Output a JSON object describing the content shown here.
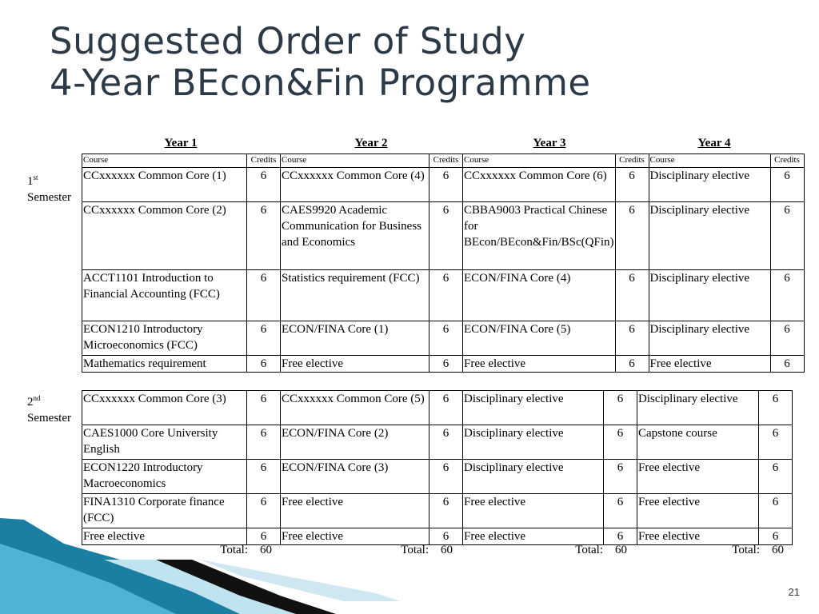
{
  "title": {
    "line1": "Suggested Order of Study",
    "line2": "4-Year BEcon&Fin Programme"
  },
  "years": [
    "Year 1",
    "Year 2",
    "Year 3",
    "Year 4"
  ],
  "header": {
    "course": "Course",
    "credits": "Credits"
  },
  "semesters": [
    {
      "num": "1",
      "sup": "st",
      "label": "Semester",
      "rows": [
        {
          "c1": "CCxxxxxx Common Core (1)",
          "k1": "6",
          "c2": "CCxxxxxx Common Core (4)",
          "k2": "6",
          "c3": "CCxxxxxx Common Core (6)",
          "k3": "6",
          "c4": "Disciplinary elective",
          "k4": "6"
        },
        {
          "c1": "CCxxxxxx Common Core (2)",
          "k1": "6",
          "c2": "CAES9920 Academic Communication for Business and Economics",
          "k2": "6",
          "c3": "CBBA9003 Practical Chinese for BEcon/BEcon&Fin/BSc(QFin)",
          "k3": "6",
          "c4": "Disciplinary elective",
          "k4": "6"
        },
        {
          "c1": "ACCT1101 Introduction to Financial Accounting (FCC)",
          "k1": "6",
          "c2": "Statistics requirement (FCC)",
          "k2": "6",
          "c3": "ECON/FINA Core (4)",
          "k3": "6",
          "c4": "Disciplinary elective",
          "k4": "6"
        },
        {
          "c1": "ECON1210 Introductory Microeconomics (FCC)",
          "k1": "6",
          "c2": "ECON/FINA Core (1)",
          "k2": "6",
          "c3": "ECON/FINA Core (5)",
          "k3": "6",
          "c4": "Disciplinary elective",
          "k4": "6"
        },
        {
          "c1": "Mathematics requirement",
          "k1": "6",
          "c2": "Free elective",
          "k2": "6",
          "c3": "Free elective",
          "k3": "6",
          "c4": "Free elective",
          "k4": "6"
        }
      ]
    },
    {
      "num": "2",
      "sup": "nd",
      "label": "Semester",
      "rows": [
        {
          "c1": "CCxxxxxx Common Core (3)",
          "k1": "6",
          "c2": "CCxxxxxx Common Core (5)",
          "k2": "6",
          "c3": "Disciplinary elective",
          "k3": "6",
          "c4": "Disciplinary elective",
          "k4": "6"
        },
        {
          "c1": "CAES1000 Core University English",
          "k1": "6",
          "c2": "ECON/FINA Core (2)",
          "k2": "6",
          "c3": "Disciplinary elective",
          "k3": "6",
          "c4": "Capstone course",
          "k4": "6"
        },
        {
          "c1": "ECON1220 Introductory Macroeconomics",
          "k1": "6",
          "c2": "ECON/FINA Core (3)",
          "k2": "6",
          "c3": "Disciplinary elective",
          "k3": "6",
          "c4": "Free elective",
          "k4": "6"
        },
        {
          "c1": "FINA1310 Corporate finance (FCC)",
          "k1": "6",
          "c2": "Free elective",
          "k2": "6",
          "c3": "Free elective",
          "k3": "6",
          "c4": "Free elective",
          "k4": "6"
        },
        {
          "c1": "Free elective",
          "k1": "6",
          "c2": "Free elective",
          "k2": "6",
          "c3": "Free elective",
          "k3": "6",
          "c4": "Free elective",
          "k4": "6"
        }
      ]
    }
  ],
  "totals": {
    "label": "Total:",
    "values": [
      "60",
      "60",
      "60",
      "60"
    ]
  },
  "page_number": "21",
  "colors": {
    "title": "#2c3a48",
    "accent_teal": "#1f8fb0",
    "accent_light": "#bfe3ef"
  }
}
